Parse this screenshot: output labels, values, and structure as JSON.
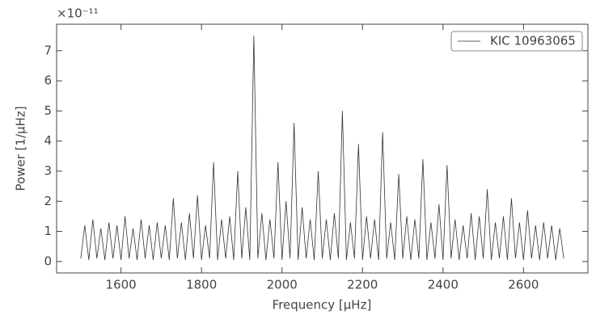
{
  "chart_data": {
    "type": "line",
    "offset_label": "×10⁻¹¹",
    "xlabel": "Frequency [μHz]",
    "ylabel": "Power [1/μHz]",
    "x": [
      1500,
      1510,
      1520,
      1530,
      1540,
      1550,
      1560,
      1570,
      1580,
      1590,
      1600,
      1610,
      1620,
      1630,
      1640,
      1650,
      1660,
      1670,
      1680,
      1690,
      1700,
      1710,
      1720,
      1730,
      1740,
      1750,
      1760,
      1770,
      1780,
      1790,
      1800,
      1810,
      1820,
      1830,
      1840,
      1850,
      1860,
      1870,
      1880,
      1890,
      1900,
      1910,
      1920,
      1930,
      1940,
      1950,
      1960,
      1970,
      1980,
      1990,
      2000,
      2010,
      2020,
      2030,
      2040,
      2050,
      2060,
      2070,
      2080,
      2090,
      2100,
      2110,
      2120,
      2130,
      2140,
      2150,
      2160,
      2170,
      2180,
      2190,
      2200,
      2210,
      2220,
      2230,
      2240,
      2250,
      2260,
      2270,
      2280,
      2290,
      2300,
      2310,
      2320,
      2330,
      2340,
      2350,
      2360,
      2370,
      2380,
      2390,
      2400,
      2410,
      2420,
      2430,
      2440,
      2450,
      2460,
      2470,
      2480,
      2490,
      2500,
      2510,
      2520,
      2530,
      2540,
      2550,
      2560,
      2570,
      2580,
      2590,
      2600,
      2610,
      2620,
      2630,
      2640,
      2650,
      2660,
      2670,
      2680,
      2690,
      2700
    ],
    "series": [
      {
        "name": "KIC 10963065",
        "color": "#333333",
        "values": [
          0.1,
          1.2,
          0.05,
          1.4,
          0.1,
          1.1,
          0.05,
          1.3,
          0.1,
          1.2,
          0.05,
          1.5,
          0.1,
          1.1,
          0.05,
          1.4,
          0.1,
          1.2,
          0.05,
          1.3,
          0.1,
          1.2,
          0.05,
          2.1,
          0.1,
          1.3,
          0.05,
          1.6,
          0.1,
          2.2,
          0.05,
          1.2,
          0.1,
          3.3,
          0.05,
          1.4,
          0.1,
          1.5,
          0.05,
          3.0,
          0.1,
          1.8,
          0.05,
          7.5,
          0.1,
          1.6,
          0.05,
          1.4,
          0.1,
          3.3,
          0.05,
          2.0,
          0.1,
          4.6,
          0.05,
          1.8,
          0.1,
          1.4,
          0.05,
          3.0,
          0.1,
          1.4,
          0.05,
          1.6,
          0.1,
          5.0,
          0.05,
          1.3,
          0.1,
          3.9,
          0.05,
          1.5,
          0.1,
          1.4,
          0.05,
          4.3,
          0.1,
          1.3,
          0.05,
          2.9,
          0.1,
          1.5,
          0.05,
          1.4,
          0.1,
          3.4,
          0.05,
          1.3,
          0.1,
          1.9,
          0.05,
          3.2,
          0.1,
          1.4,
          0.05,
          1.2,
          0.1,
          1.6,
          0.05,
          1.5,
          0.1,
          2.4,
          0.05,
          1.3,
          0.1,
          1.5,
          0.05,
          2.1,
          0.1,
          1.3,
          0.05,
          1.7,
          0.1,
          1.2,
          0.05,
          1.3,
          0.1,
          1.2,
          0.05,
          1.1,
          0.1
        ]
      }
    ],
    "xlim": [
      1440,
      2760
    ],
    "xticks": [
      1600,
      1800,
      2000,
      2200,
      2400,
      2600
    ],
    "ylim": [
      -0.38,
      7.88
    ],
    "yticks": [
      0,
      1,
      2,
      3,
      4,
      5,
      6,
      7
    ],
    "legend": "upper right"
  }
}
